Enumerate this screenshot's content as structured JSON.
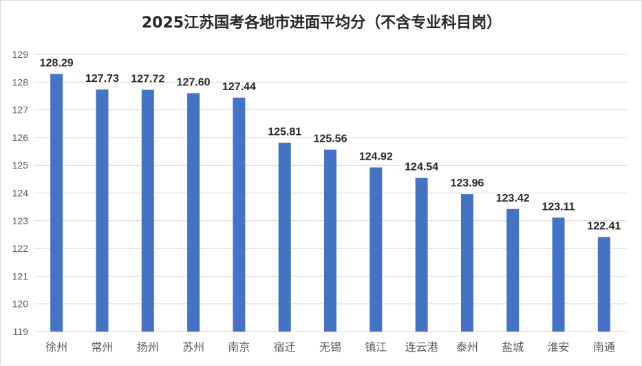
{
  "chart_data": {
    "type": "bar",
    "title": "2025江苏国考各地市进面平均分（不含专业科目岗）",
    "categories": [
      "徐州",
      "常州",
      "扬州",
      "苏州",
      "南京",
      "宿迁",
      "无锡",
      "镇江",
      "连云港",
      "泰州",
      "盐城",
      "淮安",
      "南通"
    ],
    "values": [
      128.29,
      127.73,
      127.72,
      127.6,
      127.44,
      125.81,
      125.56,
      124.92,
      124.54,
      123.96,
      123.42,
      123.11,
      122.41
    ],
    "data_labels": [
      "128.29",
      "127.73",
      "127.72",
      "127.60",
      "127.44",
      "125.81",
      "125.56",
      "124.92",
      "124.54",
      "123.96",
      "123.42",
      "123.11",
      "122.41"
    ],
    "ylim": [
      119,
      129
    ],
    "yticks": [
      119,
      120,
      121,
      122,
      123,
      124,
      125,
      126,
      127,
      128,
      129
    ],
    "grid": true,
    "legend": "none",
    "bar_color": "#4472C4",
    "grid_color": "#d9d9d9"
  }
}
